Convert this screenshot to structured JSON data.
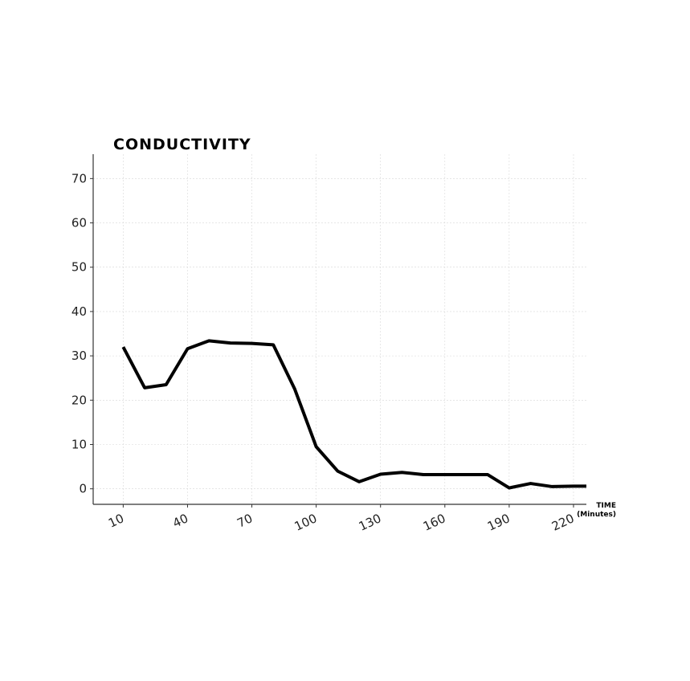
{
  "chart_data": {
    "type": "line",
    "title": "CONDUCTIVITY",
    "xlabel": "TIME",
    "xlabel_unit": "(Minutes)",
    "ylabel": "",
    "xlim": [
      -4,
      226
    ],
    "ylim": [
      -3.5,
      75.5
    ],
    "x_ticks": [
      10,
      40,
      70,
      100,
      130,
      160,
      190,
      220
    ],
    "y_ticks": [
      0,
      10,
      20,
      30,
      40,
      50,
      60,
      70
    ],
    "grid": true,
    "legend": "none",
    "line_color": "#000000",
    "series": [
      {
        "x": [
          10,
          20,
          30,
          40,
          50,
          60,
          70,
          80,
          90,
          100,
          110,
          120,
          130,
          140,
          150,
          160,
          170,
          180,
          190,
          200,
          210,
          220,
          226
        ],
        "values": [
          32.0,
          22.8,
          23.5,
          31.6,
          33.4,
          32.9,
          32.8,
          32.5,
          22.5,
          9.5,
          4.0,
          1.6,
          3.3,
          3.7,
          3.2,
          3.2,
          3.2,
          3.2,
          0.2,
          1.2,
          0.5,
          0.6,
          0.6
        ]
      }
    ]
  }
}
